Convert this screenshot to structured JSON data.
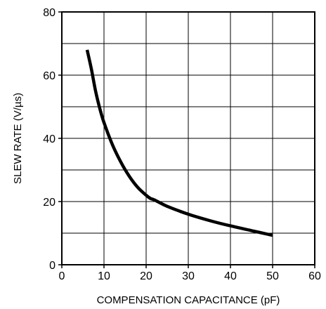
{
  "chart_data": {
    "type": "line",
    "title": "",
    "xlabel": "COMPENSATION CAPACITANCE (pF)",
    "ylabel": "SLEW RATE (V/µs)",
    "xlim": [
      0,
      60
    ],
    "ylim": [
      0,
      80
    ],
    "x_ticks": [
      0,
      10,
      20,
      30,
      40,
      50,
      60
    ],
    "y_ticks": [
      0,
      20,
      40,
      60,
      80
    ],
    "grid": true,
    "grid_x_step": 10,
    "grid_y_step": 10,
    "series": [
      {
        "x": [
          6,
          7,
          8,
          9,
          10,
          12,
          14,
          16,
          18,
          20,
          21,
          22,
          25,
          30,
          35,
          40,
          45,
          50
        ],
        "y": [
          68,
          62,
          55,
          49.5,
          45,
          38,
          32.5,
          28,
          24.5,
          22,
          21,
          20.5,
          18.5,
          16,
          14,
          12.3,
          10.8,
          9.3
        ]
      }
    ]
  }
}
